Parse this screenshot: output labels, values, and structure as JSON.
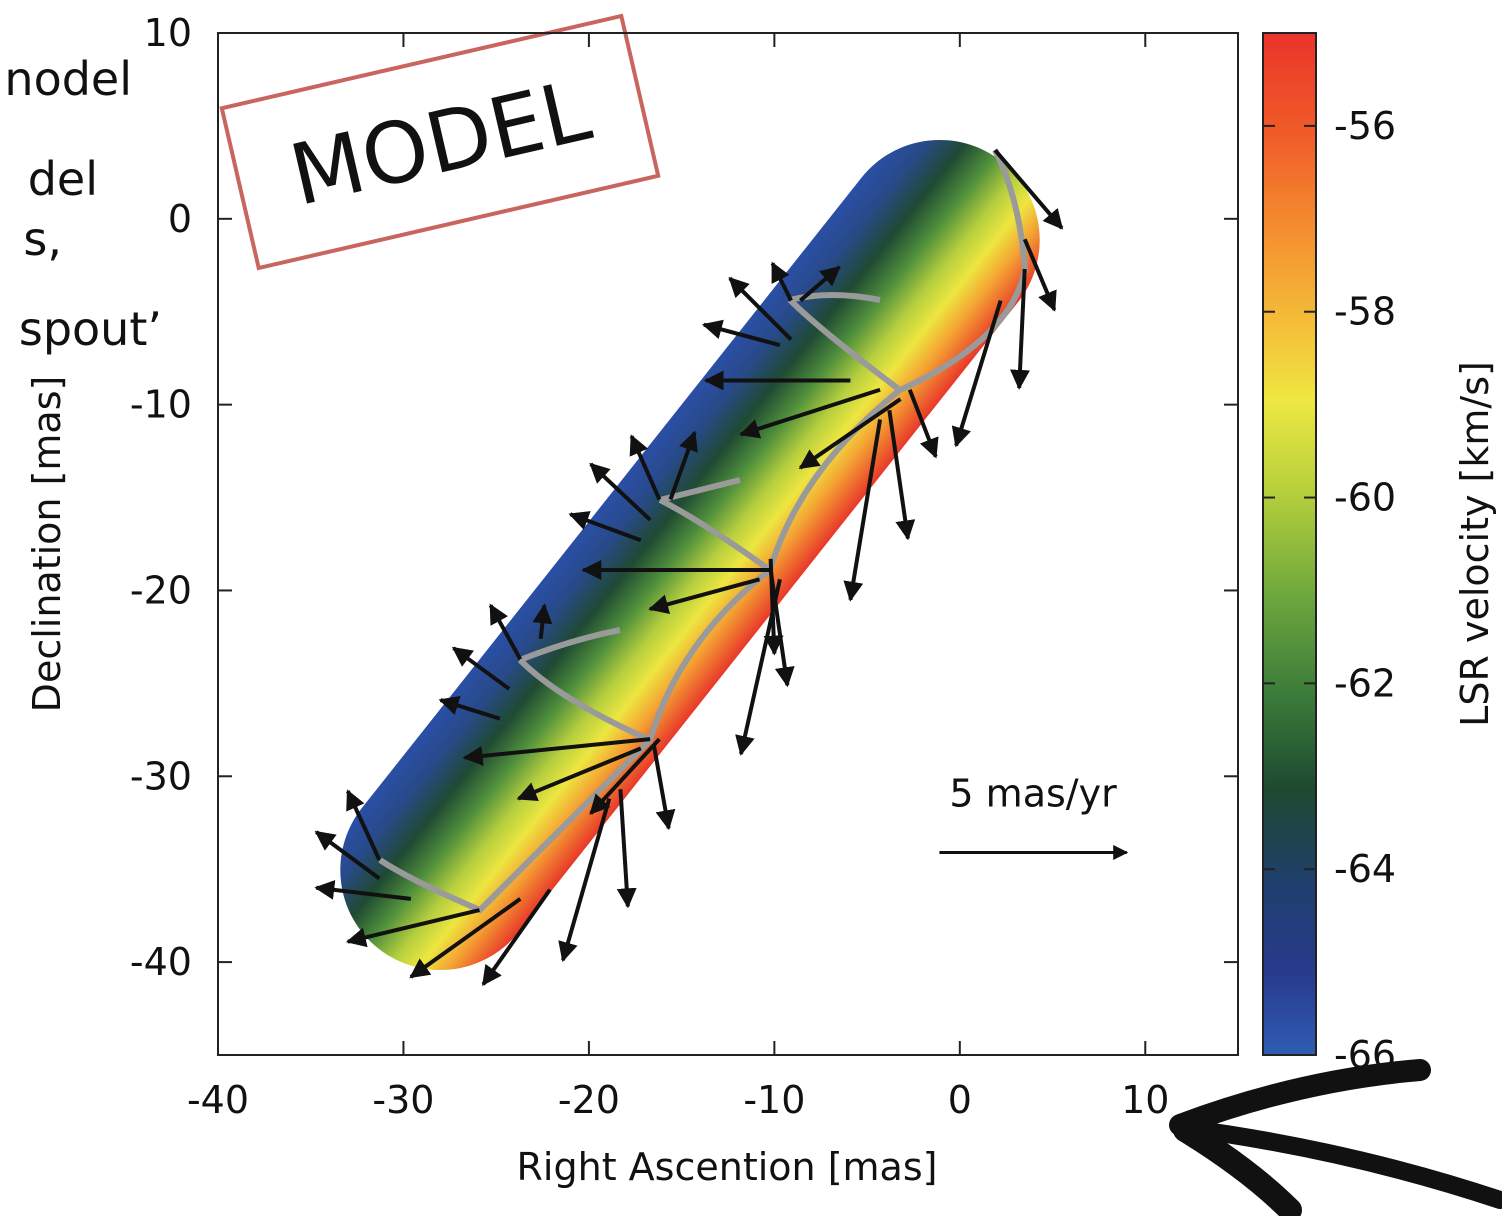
{
  "chart_data": {
    "type": "quiver",
    "xlabel": "Right Ascention [mas]",
    "ylabel": "Declination [mas]",
    "xlim": [
      -40,
      15
    ],
    "ylim": [
      -45,
      10
    ],
    "xticks": [
      -40,
      -30,
      -20,
      -10,
      0,
      10
    ],
    "yticks": [
      -40,
      -30,
      -20,
      -10,
      0,
      10
    ],
    "annotation": "MODEL",
    "arrow_color": "#111111",
    "arrows": {
      "x": [
        1.9,
        3.5,
        3.5,
        2.2,
        -9.1,
        -8.6,
        -9.1,
        -9.7,
        -5.9,
        -4.3,
        -3.2,
        -2.7,
        -3.8,
        -4.3,
        -16.2,
        -15.6,
        -16.7,
        -17.2,
        -10.2,
        -10.8,
        -10.2,
        -10.2,
        -9.7,
        -23.7,
        -22.6,
        -24.3,
        -24.8,
        -16.7,
        -17.2,
        -16.2,
        -16.5,
        -18.3,
        -18.9,
        -31.3,
        -31.3,
        -29.6,
        -25.9,
        -23.7,
        -22.1
      ],
      "y": [
        3.7,
        -1.1,
        -2.7,
        -4.4,
        -4.4,
        -4.4,
        -6.5,
        -6.8,
        -8.7,
        -9.2,
        -9.7,
        -9.2,
        -10.3,
        -10.8,
        -15.1,
        -15.1,
        -16.2,
        -17.3,
        -18.9,
        -19.4,
        -18.9,
        -18.3,
        -19.4,
        -23.7,
        -22.6,
        -25.3,
        -26.9,
        -28.0,
        -28.5,
        -28.0,
        -28.3,
        -30.7,
        -31.2,
        -34.5,
        -35.5,
        -36.6,
        -37.2,
        -36.6,
        -36.1
      ],
      "x_end": [
        5.5,
        5.1,
        3.2,
        -0.2,
        -10.1,
        -6.5,
        -12.4,
        -13.8,
        -13.7,
        -11.8,
        -8.6,
        -1.3,
        -2.8,
        -5.9,
        -17.7,
        -14.3,
        -19.9,
        -21.0,
        -20.3,
        -16.7,
        -9.3,
        -10.0,
        -11.8,
        -25.3,
        -22.4,
        -27.3,
        -28.0,
        -26.7,
        -23.8,
        -19.9,
        -15.7,
        -17.9,
        -21.4,
        -33.0,
        -34.7,
        -34.7,
        -33.0,
        -29.6,
        -25.7
      ],
      "y_end": [
        -0.5,
        -4.9,
        -9.1,
        -12.2,
        -2.4,
        -2.6,
        -3.2,
        -5.7,
        -8.7,
        -11.6,
        -13.4,
        -12.8,
        -17.2,
        -20.5,
        -11.7,
        -11.5,
        -13.2,
        -15.9,
        -18.9,
        -21.0,
        -25.1,
        -23.4,
        -28.8,
        -20.8,
        -20.8,
        -23.1,
        -25.9,
        -29.0,
        -31.2,
        -32.0,
        -32.8,
        -37.0,
        -39.9,
        -30.8,
        -33.0,
        -36.0,
        -38.9,
        -40.8,
        -41.2
      ]
    },
    "scale_bar": {
      "label": "5 mas/yr",
      "x": -1.1,
      "y": -34.1,
      "x_end": 9
    },
    "colorbar": {
      "label": "LSR velocity [km/s]",
      "lim": [
        -66,
        -55
      ],
      "ticks": [
        -66,
        -64,
        -62,
        -60,
        -58,
        -56
      ]
    }
  },
  "cropped_text": [
    "nodel",
    "del",
    "s,",
    "spout’"
  ]
}
